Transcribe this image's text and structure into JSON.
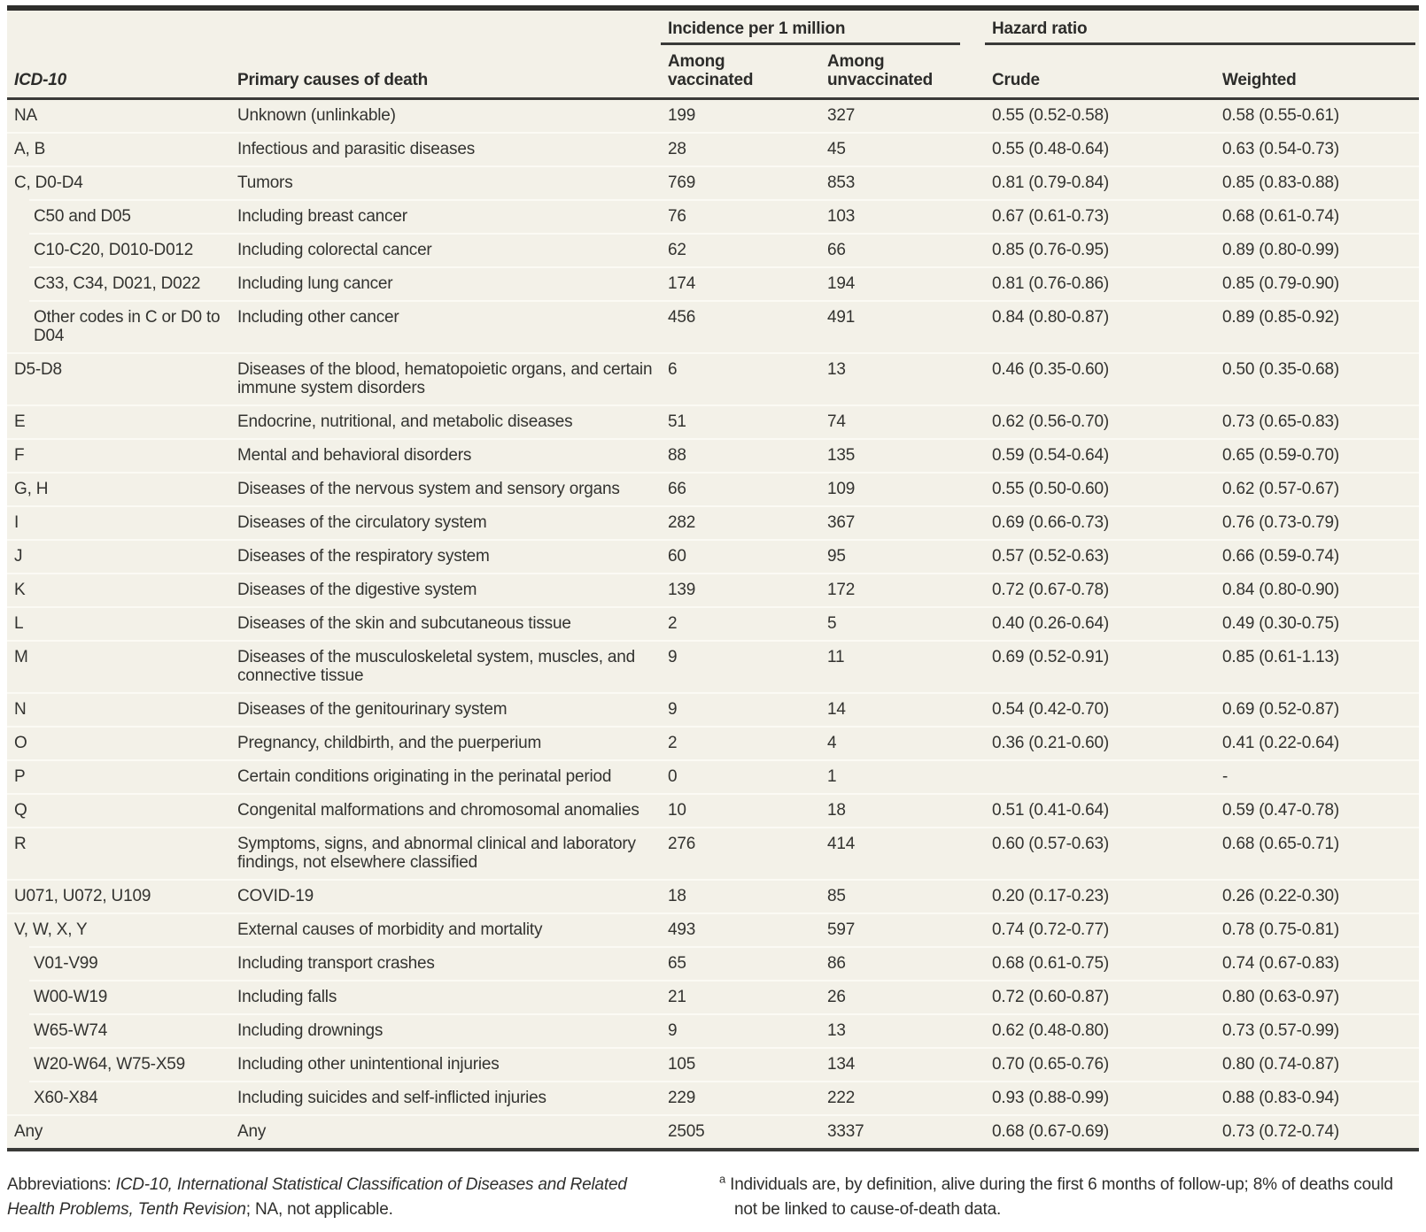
{
  "table": {
    "column_groups": {
      "incidence": "Incidence per 1 million",
      "hazard": "Hazard ratio"
    },
    "columns": {
      "icd10": "ICD-10",
      "cause": "Primary causes of death",
      "among_vaccinated": "Among\nvaccinated",
      "among_unvaccinated": "Among\nunvaccinated",
      "crude": "Crude",
      "weighted": "Weighted"
    },
    "rows": [
      {
        "icd10": "NA",
        "cause": "Unknown (unlinkable)",
        "vaccinated": "199",
        "unvaccinated": "327",
        "crude": "0.55 (0.52-0.58)",
        "weighted": "0.58 (0.55-0.61)",
        "indent": false
      },
      {
        "icd10": "A, B",
        "cause": "Infectious and parasitic diseases",
        "vaccinated": "28",
        "unvaccinated": "45",
        "crude": "0.55 (0.48-0.64)",
        "weighted": "0.63 (0.54-0.73)",
        "indent": false
      },
      {
        "icd10": "C, D0-D4",
        "cause": "Tumors",
        "vaccinated": "769",
        "unvaccinated": "853",
        "crude": "0.81 (0.79-0.84)",
        "weighted": "0.85 (0.83-0.88)",
        "indent": false
      },
      {
        "icd10": "C50 and D05",
        "cause": "Including breast cancer",
        "vaccinated": "76",
        "unvaccinated": "103",
        "crude": "0.67 (0.61-0.73)",
        "weighted": "0.68 (0.61-0.74)",
        "indent": true
      },
      {
        "icd10": "C10-C20, D010-D012",
        "cause": "Including colorectal cancer",
        "vaccinated": "62",
        "unvaccinated": "66",
        "crude": "0.85 (0.76-0.95)",
        "weighted": "0.89 (0.80-0.99)",
        "indent": true
      },
      {
        "icd10": "C33, C34, D021, D022",
        "cause": "Including lung cancer",
        "vaccinated": "174",
        "unvaccinated": "194",
        "crude": "0.81 (0.76-0.86)",
        "weighted": "0.85 (0.79-0.90)",
        "indent": true
      },
      {
        "icd10": "Other codes in C or D0 to D04",
        "cause": "Including other cancer",
        "vaccinated": "456",
        "unvaccinated": "491",
        "crude": "0.84 (0.80-0.87)",
        "weighted": "0.89 (0.85-0.92)",
        "indent": true
      },
      {
        "icd10": "D5-D8",
        "cause": "Diseases of the blood, hematopoietic organs, and certain immune system disorders",
        "vaccinated": "6",
        "unvaccinated": "13",
        "crude": "0.46 (0.35-0.60)",
        "weighted": "0.50 (0.35-0.68)",
        "indent": false
      },
      {
        "icd10": "E",
        "cause": "Endocrine, nutritional, and metabolic diseases",
        "vaccinated": "51",
        "unvaccinated": "74",
        "crude": "0.62 (0.56-0.70)",
        "weighted": "0.73 (0.65-0.83)",
        "indent": false
      },
      {
        "icd10": "F",
        "cause": "Mental and behavioral disorders",
        "vaccinated": "88",
        "unvaccinated": "135",
        "crude": "0.59 (0.54-0.64)",
        "weighted": "0.65 (0.59-0.70)",
        "indent": false
      },
      {
        "icd10": "G, H",
        "cause": "Diseases of the nervous system and sensory organs",
        "vaccinated": "66",
        "unvaccinated": "109",
        "crude": "0.55 (0.50-0.60)",
        "weighted": "0.62 (0.57-0.67)",
        "indent": false
      },
      {
        "icd10": "I",
        "cause": "Diseases of the circulatory system",
        "vaccinated": "282",
        "unvaccinated": "367",
        "crude": "0.69 (0.66-0.73)",
        "weighted": "0.76 (0.73-0.79)",
        "indent": false
      },
      {
        "icd10": "J",
        "cause": "Diseases of the respiratory system",
        "vaccinated": "60",
        "unvaccinated": "95",
        "crude": "0.57 (0.52-0.63)",
        "weighted": "0.66 (0.59-0.74)",
        "indent": false
      },
      {
        "icd10": "K",
        "cause": "Diseases of the digestive system",
        "vaccinated": "139",
        "unvaccinated": "172",
        "crude": "0.72 (0.67-0.78)",
        "weighted": "0.84 (0.80-0.90)",
        "indent": false
      },
      {
        "icd10": "L",
        "cause": "Diseases of the skin and subcutaneous tissue",
        "vaccinated": "2",
        "unvaccinated": "5",
        "crude": "0.40 (0.26-0.64)",
        "weighted": "0.49 (0.30-0.75)",
        "indent": false
      },
      {
        "icd10": "M",
        "cause": "Diseases of the musculoskeletal system, muscles, and connective tissue",
        "vaccinated": "9",
        "unvaccinated": "11",
        "crude": "0.69 (0.52-0.91)",
        "weighted": "0.85 (0.61-1.13)",
        "indent": false
      },
      {
        "icd10": "N",
        "cause": "Diseases of the genitourinary system",
        "vaccinated": "9",
        "unvaccinated": "14",
        "crude": "0.54 (0.42-0.70)",
        "weighted": "0.69 (0.52-0.87)",
        "indent": false
      },
      {
        "icd10": "O",
        "cause": "Pregnancy, childbirth, and the puerperium",
        "vaccinated": "2",
        "unvaccinated": "4",
        "crude": "0.36 (0.21-0.60)",
        "weighted": "0.41 (0.22-0.64)",
        "indent": false
      },
      {
        "icd10": "P",
        "cause": "Certain conditions originating in the perinatal period",
        "vaccinated": "0",
        "unvaccinated": "1",
        "crude": "",
        "weighted": "-",
        "indent": false
      },
      {
        "icd10": "Q",
        "cause": "Congenital malformations and chromosomal anomalies",
        "vaccinated": "10",
        "unvaccinated": "18",
        "crude": "0.51 (0.41-0.64)",
        "weighted": "0.59 (0.47-0.78)",
        "indent": false
      },
      {
        "icd10": "R",
        "cause": "Symptoms, signs, and abnormal clinical and laboratory findings, not elsewhere classified",
        "vaccinated": "276",
        "unvaccinated": "414",
        "crude": "0.60 (0.57-0.63)",
        "weighted": "0.68 (0.65-0.71)",
        "indent": false
      },
      {
        "icd10": "U071, U072, U109",
        "cause": "COVID-19",
        "vaccinated": "18",
        "unvaccinated": "85",
        "crude": "0.20 (0.17-0.23)",
        "weighted": "0.26 (0.22-0.30)",
        "indent": false
      },
      {
        "icd10": "V, W, X, Y",
        "cause": "External causes of morbidity and mortality",
        "vaccinated": "493",
        "unvaccinated": "597",
        "crude": "0.74 (0.72-0.77)",
        "weighted": "0.78 (0.75-0.81)",
        "indent": false
      },
      {
        "icd10": "V01-V99",
        "cause": "Including transport crashes",
        "vaccinated": "65",
        "unvaccinated": "86",
        "crude": "0.68 (0.61-0.75)",
        "weighted": "0.74 (0.67-0.83)",
        "indent": true
      },
      {
        "icd10": "W00-W19",
        "cause": "Including falls",
        "vaccinated": "21",
        "unvaccinated": "26",
        "crude": "0.72 (0.60-0.87)",
        "weighted": "0.80 (0.63-0.97)",
        "indent": true
      },
      {
        "icd10": "W65-W74",
        "cause": "Including drownings",
        "vaccinated": "9",
        "unvaccinated": "13",
        "crude": "0.62 (0.48-0.80)",
        "weighted": "0.73 (0.57-0.99)",
        "indent": true
      },
      {
        "icd10": "W20-W64, W75-X59",
        "cause": "Including other unintentional injuries",
        "vaccinated": "105",
        "unvaccinated": "134",
        "crude": "0.70 (0.65-0.76)",
        "weighted": "0.80 (0.74-0.87)",
        "indent": true
      },
      {
        "icd10": "X60-X84",
        "cause": "Including suicides and self-inflicted injuries",
        "vaccinated": "229",
        "unvaccinated": "222",
        "crude": "0.93 (0.88-0.99)",
        "weighted": "0.88 (0.83-0.94)",
        "indent": true
      },
      {
        "icd10": "Any",
        "cause": "Any",
        "vaccinated": "2505",
        "unvaccinated": "3337",
        "crude": "0.68 (0.67-0.69)",
        "weighted": "0.73 (0.72-0.74)",
        "indent": false
      }
    ]
  },
  "footnotes": {
    "abbrev_prefix": "Abbreviations: ",
    "abbrev_italic": "ICD-10, International Statistical Classification of Diseases and Related Health Problems, Tenth Revision",
    "abbrev_suffix": "; NA, not applicable.",
    "a_marker": "a",
    "a_text": " Individuals are, by definition, alive during the first 6 months of follow-up; 8% of deaths could not be linked to cause-of-death data."
  },
  "colors": {
    "table_background": "#f3f1e8",
    "row_divider": "#fbfaf4",
    "rule_dark": "#3a3a38",
    "top_bar": "#2e2e2c",
    "text": "#333330",
    "page_background": "#ffffff"
  }
}
